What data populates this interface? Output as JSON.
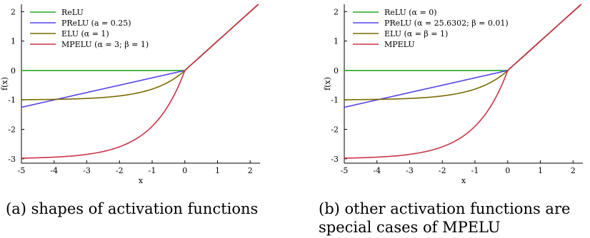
{
  "chart_data": [
    {
      "type": "line",
      "xlabel": "x",
      "ylabel": "f(x)",
      "xlim": [
        -5,
        2.3
      ],
      "ylim": [
        -3.15,
        2.25
      ],
      "xticks": [
        -5,
        -4,
        -3,
        -2,
        -1,
        0,
        1,
        2
      ],
      "yticks": [
        2,
        1,
        0,
        -1,
        -2,
        -3
      ],
      "xtick_labels": [
        "-5",
        "-4",
        "-3",
        "-2",
        "-1",
        "0",
        "1",
        "2"
      ],
      "ytick_labels": [
        "2",
        "1",
        "0",
        "-1",
        "-2",
        "-3"
      ],
      "legend_position": "top-left",
      "grid": false,
      "series": [
        {
          "name": "ReLU",
          "color": "#22aa22",
          "func": "relu",
          "params": {}
        },
        {
          "name": "PReLU (a = 0.25)",
          "color": "#5544ee",
          "func": "prelu",
          "params": {
            "a": 0.25
          }
        },
        {
          "name": "ELU (α = 1)",
          "color": "#7a6a00",
          "func": "elu",
          "params": {
            "alpha": 1
          }
        },
        {
          "name": "MPELU (α = 3; β = 1)",
          "color": "#cc3344",
          "func": "mpelu",
          "params": {
            "alpha": 3,
            "beta": 1
          }
        }
      ]
    },
    {
      "type": "line",
      "xlabel": "x",
      "ylabel": "f(x)",
      "xlim": [
        -5,
        2.3
      ],
      "ylim": [
        -3.15,
        2.25
      ],
      "xticks": [
        -5,
        -4,
        -3,
        -2,
        -1,
        0,
        1,
        2
      ],
      "yticks": [
        2,
        1,
        0,
        -1,
        -2,
        -3
      ],
      "xtick_labels": [
        "-5",
        "-4",
        "-3",
        "-2",
        "-1",
        "0",
        "1",
        "2"
      ],
      "ytick_labels": [
        "2",
        "1",
        "0",
        "-1",
        "-2",
        "-3"
      ],
      "legend_position": "top-left",
      "grid": false,
      "series": [
        {
          "name": "ReLU (α = 0)",
          "color": "#22aa22",
          "func": "relu",
          "params": {}
        },
        {
          "name": "PReLU (α = 25.6302; β = 0.01)",
          "color": "#5544ee",
          "func": "prelu",
          "params": {
            "a": 0.25
          }
        },
        {
          "name": "ELU (α = β = 1)",
          "color": "#7a6a00",
          "func": "elu",
          "params": {
            "alpha": 1
          }
        },
        {
          "name": "MPELU",
          "color": "#cc3344",
          "func": "mpelu",
          "params": {
            "alpha": 3,
            "beta": 1
          }
        }
      ]
    }
  ],
  "captions": {
    "a": "(a) shapes of activation functions",
    "b": "(b) other activation functions are special cases of MPELU"
  }
}
